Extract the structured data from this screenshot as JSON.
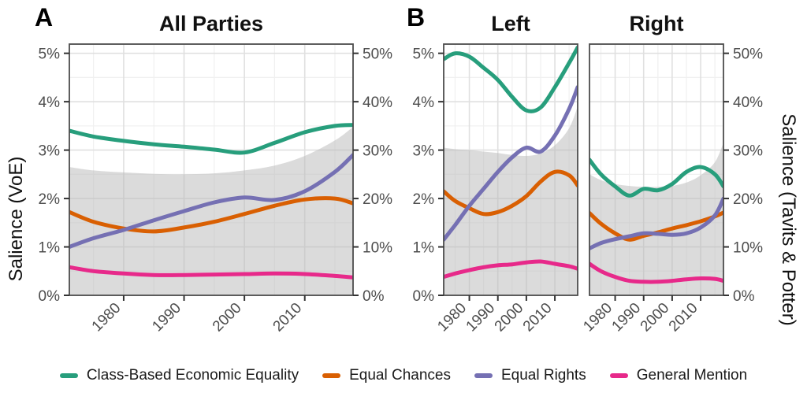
{
  "figure": {
    "panel_letters": [
      "A",
      "B"
    ],
    "background": "#ffffff"
  },
  "chart_data": {
    "type": "line",
    "title": "",
    "x": {
      "domain": [
        1971,
        2018
      ],
      "tick_years": [
        1980,
        1990,
        2000,
        2010
      ],
      "tick_labels": [
        "1980",
        "1990",
        "2000",
        "2010"
      ],
      "minor_years": [
        1975,
        1985,
        1995,
        2005,
        2015
      ]
    },
    "y_left": {
      "title": "Salience (VoE)",
      "range": [
        0,
        5
      ],
      "tick_values": [
        0,
        1,
        2,
        3,
        4,
        5
      ],
      "tick_labels": [
        "0%",
        "1%",
        "2%",
        "3%",
        "4%",
        "5%"
      ]
    },
    "y_right": {
      "title": "Salience (Tavits & Potter)",
      "range": [
        0,
        50
      ],
      "tick_values": [
        0,
        10,
        20,
        30,
        40,
        50
      ],
      "tick_labels": [
        "0%",
        "10%",
        "20%",
        "30%",
        "40%",
        "50%"
      ]
    },
    "grid": true,
    "legend_position": "bottom",
    "band_color": "#b7b7b7",
    "band_opacity": 0.5,
    "years": [
      1971,
      1975,
      1980,
      1985,
      1990,
      1995,
      2000,
      2005,
      2010,
      2015,
      2018
    ],
    "panels": [
      {
        "letter": "A",
        "title": "All Parties",
        "band": {
          "name": "Salience (Tavits & Potter)",
          "axis": "right",
          "values": [
            26.5,
            25.8,
            25.4,
            25.1,
            25.0,
            25.2,
            25.8,
            26.8,
            28.8,
            32.0,
            34.8
          ]
        },
        "series": [
          {
            "name": "Class-Based Economic Equality",
            "values": [
              3.4,
              3.28,
              3.19,
              3.12,
              3.07,
              3.01,
              2.95,
              3.15,
              3.37,
              3.5,
              3.52
            ]
          },
          {
            "name": "Equal Chances",
            "values": [
              1.72,
              1.52,
              1.38,
              1.32,
              1.4,
              1.52,
              1.68,
              1.85,
              1.98,
              2.0,
              1.9
            ]
          },
          {
            "name": "Equal Rights",
            "values": [
              1.0,
              1.18,
              1.35,
              1.55,
              1.74,
              1.92,
              2.02,
              1.97,
              2.15,
              2.55,
              2.9
            ]
          },
          {
            "name": "General Mention",
            "values": [
              0.58,
              0.5,
              0.45,
              0.42,
              0.42,
              0.43,
              0.44,
              0.45,
              0.44,
              0.4,
              0.37
            ]
          }
        ]
      },
      {
        "letter": "B",
        "title": "Left",
        "band": {
          "name": "Salience (Tavits & Potter)",
          "axis": "right",
          "values": [
            30.5,
            30.2,
            30.0,
            29.7,
            29.4,
            29.0,
            28.8,
            29.3,
            31.0,
            34.5,
            39.0
          ]
        },
        "series": [
          {
            "name": "Class-Based Economic Equality",
            "values": [
              4.88,
              5.0,
              4.93,
              4.7,
              4.45,
              4.1,
              3.82,
              3.88,
              4.3,
              4.8,
              5.12
            ]
          },
          {
            "name": "Equal Chances",
            "values": [
              2.15,
              1.95,
              1.8,
              1.68,
              1.72,
              1.85,
              2.05,
              2.35,
              2.55,
              2.48,
              2.27
            ]
          },
          {
            "name": "Equal Rights",
            "values": [
              1.15,
              1.45,
              1.85,
              2.2,
              2.55,
              2.85,
              3.05,
              2.97,
              3.3,
              3.85,
              4.3
            ]
          },
          {
            "name": "General Mention",
            "values": [
              0.38,
              0.45,
              0.52,
              0.58,
              0.62,
              0.64,
              0.68,
              0.7,
              0.65,
              0.6,
              0.55
            ]
          }
        ]
      },
      {
        "letter": "",
        "title": "Right",
        "band": {
          "name": "Salience (Tavits & Potter)",
          "axis": "right",
          "values": [
            25.0,
            23.8,
            23.0,
            22.6,
            22.4,
            22.4,
            22.6,
            23.3,
            24.8,
            27.5,
            31.5
          ]
        },
        "series": [
          {
            "name": "Class-Based Economic Equality",
            "values": [
              2.8,
              2.5,
              2.25,
              2.06,
              2.2,
              2.17,
              2.3,
              2.55,
              2.65,
              2.5,
              2.25
            ]
          },
          {
            "name": "Equal Chances",
            "values": [
              1.7,
              1.48,
              1.28,
              1.15,
              1.23,
              1.3,
              1.38,
              1.45,
              1.53,
              1.63,
              1.71
            ]
          },
          {
            "name": "Equal Rights",
            "values": [
              0.97,
              1.08,
              1.16,
              1.22,
              1.28,
              1.27,
              1.25,
              1.28,
              1.4,
              1.65,
              2.0
            ]
          },
          {
            "name": "General Mention",
            "values": [
              0.65,
              0.5,
              0.38,
              0.3,
              0.28,
              0.28,
              0.3,
              0.33,
              0.35,
              0.34,
              0.3
            ]
          }
        ]
      }
    ],
    "legend": [
      {
        "label": "Class-Based Economic Equality",
        "color": "#279E7C"
      },
      {
        "label": "Equal Chances",
        "color": "#D95F02"
      },
      {
        "label": "Equal Rights",
        "color": "#7570B3"
      },
      {
        "label": "General Mention",
        "color": "#E7298A"
      }
    ]
  }
}
